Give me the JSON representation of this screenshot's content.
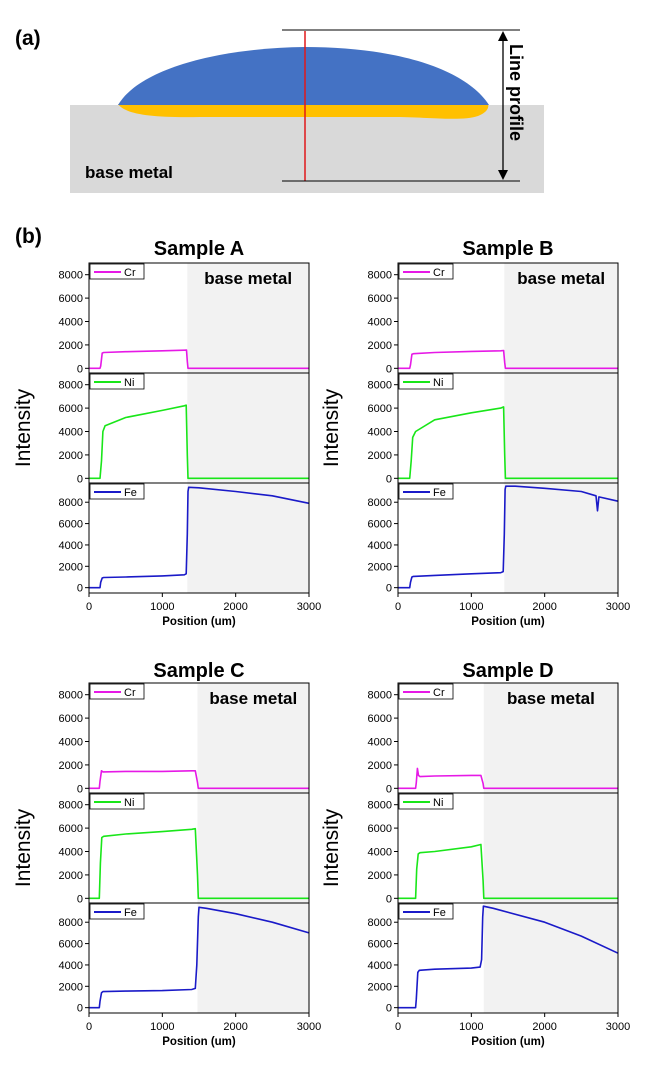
{
  "diagram": {
    "panel_label": "(a)",
    "line_profile_label": "Line profile",
    "base_metal_label": "base metal",
    "colors": {
      "weld_top": "#4472c4",
      "fusion_zone": "#ffc000",
      "base_metal": "#d9d9d9",
      "profile_line": "#e0191b"
    }
  },
  "panel_b_label": "(b)",
  "chart_data": [
    {
      "type": "line",
      "title": "Sample A",
      "xlabel": "Position (um)",
      "ylabel": "Intensity",
      "xlim": [
        0,
        3000
      ],
      "x_ticks": [
        0,
        1000,
        2000,
        3000
      ],
      "base_metal_start": 1340,
      "base_metal_label": "base metal",
      "series": [
        {
          "name": "Cr",
          "color": "#e619e6",
          "ylim": [
            -400,
            9000
          ],
          "y_ticks": [
            0,
            2000,
            4000,
            6000,
            8000
          ],
          "x": [
            0,
            150,
            160,
            180,
            200,
            500,
            1000,
            1300,
            1330,
            1340,
            1350,
            2000,
            3000
          ],
          "y": [
            0,
            0,
            200,
            1300,
            1350,
            1420,
            1500,
            1550,
            1560,
            600,
            0,
            0,
            0
          ]
        },
        {
          "name": "Ni",
          "color": "#19e619",
          "ylim": [
            -400,
            9000
          ],
          "y_ticks": [
            0,
            2000,
            4000,
            6000,
            8000
          ],
          "x": [
            0,
            150,
            170,
            190,
            220,
            500,
            1000,
            1300,
            1325,
            1340,
            1350,
            2000,
            3000
          ],
          "y": [
            0,
            0,
            1500,
            4000,
            4500,
            5200,
            5800,
            6200,
            6250,
            2000,
            0,
            0,
            0
          ]
        },
        {
          "name": "Fe",
          "color": "#1a1ac8",
          "ylim": [
            -500,
            9800
          ],
          "y_ticks": [
            0,
            2000,
            4000,
            6000,
            8000
          ],
          "x": [
            0,
            150,
            160,
            180,
            200,
            500,
            1000,
            1300,
            1325,
            1340,
            1350,
            1360,
            1500,
            2000,
            2500,
            3000
          ],
          "y": [
            0,
            0,
            500,
            900,
            950,
            1000,
            1100,
            1200,
            1300,
            5000,
            9000,
            9400,
            9350,
            9000,
            8600,
            7900
          ]
        }
      ]
    },
    {
      "type": "line",
      "title": "Sample B",
      "xlabel": "Position (um)",
      "ylabel": "Intensity",
      "xlim": [
        0,
        3000
      ],
      "x_ticks": [
        0,
        1000,
        2000,
        3000
      ],
      "base_metal_start": 1450,
      "base_metal_label": "base metal",
      "series": [
        {
          "name": "Cr",
          "color": "#e619e6",
          "ylim": [
            -400,
            9000
          ],
          "y_ticks": [
            0,
            2000,
            4000,
            6000,
            8000
          ],
          "x": [
            0,
            160,
            170,
            190,
            210,
            500,
            1000,
            1400,
            1440,
            1455,
            1465,
            2000,
            3000
          ],
          "y": [
            0,
            0,
            300,
            1200,
            1250,
            1350,
            1450,
            1500,
            1520,
            500,
            0,
            0,
            0
          ]
        },
        {
          "name": "Ni",
          "color": "#19e619",
          "ylim": [
            -400,
            9000
          ],
          "y_ticks": [
            0,
            2000,
            4000,
            6000,
            8000
          ],
          "x": [
            0,
            160,
            180,
            200,
            240,
            500,
            1000,
            1400,
            1440,
            1455,
            1465,
            2000,
            3000
          ],
          "y": [
            0,
            0,
            1500,
            3500,
            4000,
            5000,
            5600,
            6000,
            6100,
            2000,
            0,
            0,
            0
          ]
        },
        {
          "name": "Fe",
          "color": "#1a1ac8",
          "ylim": [
            -500,
            9800
          ],
          "y_ticks": [
            0,
            2000,
            4000,
            6000,
            8000
          ],
          "x": [
            0,
            160,
            170,
            190,
            210,
            500,
            1000,
            1400,
            1435,
            1450,
            1460,
            1470,
            1600,
            2000,
            2500,
            2700,
            2720,
            2740,
            3000
          ],
          "y": [
            0,
            0,
            500,
            1000,
            1050,
            1150,
            1300,
            1400,
            1500,
            5000,
            9200,
            9500,
            9500,
            9300,
            9000,
            8600,
            7200,
            8500,
            8100
          ]
        }
      ]
    },
    {
      "type": "line",
      "title": "Sample C",
      "xlabel": "Position (um)",
      "ylabel": "Intensity",
      "xlim": [
        0,
        3000
      ],
      "x_ticks": [
        0,
        1000,
        2000,
        3000
      ],
      "base_metal_start": 1480,
      "base_metal_label": "base metal",
      "series": [
        {
          "name": "Cr",
          "color": "#e619e6",
          "ylim": [
            -400,
            9000
          ],
          "y_ticks": [
            0,
            2000,
            4000,
            6000,
            8000
          ],
          "x": [
            0,
            140,
            150,
            170,
            190,
            500,
            1000,
            1400,
            1450,
            1480,
            1490,
            2000,
            3000
          ],
          "y": [
            0,
            0,
            600,
            1500,
            1400,
            1450,
            1450,
            1500,
            1500,
            500,
            0,
            0,
            0
          ]
        },
        {
          "name": "Ni",
          "color": "#19e619",
          "ylim": [
            -400,
            9000
          ],
          "y_ticks": [
            0,
            2000,
            4000,
            6000,
            8000
          ],
          "x": [
            0,
            140,
            155,
            175,
            200,
            500,
            1000,
            1400,
            1450,
            1480,
            1490,
            2000,
            3000
          ],
          "y": [
            0,
            0,
            3000,
            5200,
            5300,
            5500,
            5700,
            5900,
            5950,
            2000,
            0,
            0,
            0
          ]
        },
        {
          "name": "Fe",
          "color": "#1a1ac8",
          "ylim": [
            -500,
            9800
          ],
          "y_ticks": [
            0,
            2000,
            4000,
            6000,
            8000
          ],
          "x": [
            0,
            140,
            150,
            170,
            190,
            500,
            1000,
            1400,
            1450,
            1470,
            1490,
            1500,
            1600,
            2000,
            2500,
            3000
          ],
          "y": [
            0,
            0,
            600,
            1400,
            1500,
            1550,
            1600,
            1700,
            1800,
            4000,
            8500,
            9400,
            9300,
            8800,
            8000,
            7000
          ]
        }
      ]
    },
    {
      "type": "line",
      "title": "Sample D",
      "xlabel": "Position (um)",
      "ylabel": "Intensity",
      "xlim": [
        0,
        3000
      ],
      "x_ticks": [
        0,
        1000,
        2000,
        3000
      ],
      "base_metal_start": 1170,
      "base_metal_label": "base metal",
      "series": [
        {
          "name": "Cr",
          "color": "#e619e6",
          "ylim": [
            -400,
            9000
          ],
          "y_ticks": [
            0,
            2000,
            4000,
            6000,
            8000
          ],
          "x": [
            0,
            240,
            250,
            265,
            280,
            300,
            500,
            1000,
            1130,
            1160,
            1170,
            2000,
            3000
          ],
          "y": [
            0,
            0,
            500,
            1700,
            1100,
            1000,
            1050,
            1100,
            1100,
            400,
            0,
            0,
            0
          ]
        },
        {
          "name": "Ni",
          "color": "#19e619",
          "ylim": [
            -400,
            9000
          ],
          "y_ticks": [
            0,
            2000,
            4000,
            6000,
            8000
          ],
          "x": [
            0,
            240,
            255,
            275,
            300,
            500,
            1000,
            1130,
            1160,
            1170,
            2000,
            3000
          ],
          "y": [
            0,
            0,
            2500,
            3800,
            3900,
            4000,
            4400,
            4600,
            1500,
            0,
            0,
            0
          ]
        },
        {
          "name": "Fe",
          "color": "#1a1ac8",
          "ylim": [
            -500,
            9800
          ],
          "y_ticks": [
            0,
            2000,
            4000,
            6000,
            8000
          ],
          "x": [
            0,
            240,
            250,
            270,
            290,
            500,
            1000,
            1120,
            1140,
            1155,
            1165,
            1300,
            2000,
            2500,
            3000
          ],
          "y": [
            0,
            0,
            800,
            3300,
            3500,
            3600,
            3700,
            3800,
            4500,
            8500,
            9500,
            9300,
            8000,
            6700,
            5100
          ]
        }
      ]
    }
  ]
}
